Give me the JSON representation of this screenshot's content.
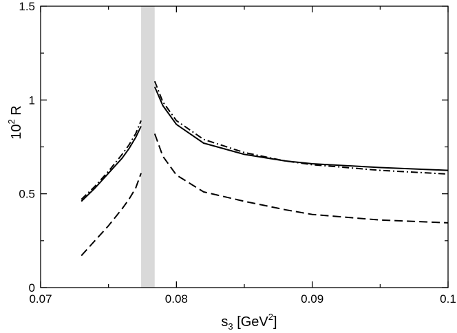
{
  "chart_data": {
    "type": "line",
    "xlim": [
      0.07,
      0.1
    ],
    "ylim": [
      0,
      1.5
    ],
    "x_ticks": [
      "0.07",
      "0.08",
      "0.09",
      "0.1"
    ],
    "y_ticks": [
      "0",
      "0.5",
      "1",
      "1.5"
    ],
    "xlabel": {
      "main": "s",
      "sub": "3",
      "mid": " [GeV",
      "sup": "2",
      "end": "]"
    },
    "ylabel": {
      "base": "10",
      "sup": "2",
      "rest": " R"
    },
    "shaded_band": {
      "x_from": 0.0774,
      "x_to": 0.0784,
      "color": "#d9d9d9"
    },
    "grid": false,
    "series": [
      {
        "style": "solid",
        "x": [
          0.073,
          0.074,
          0.075,
          0.076,
          0.0765,
          0.077,
          0.0774
        ],
        "y": [
          0.46,
          0.53,
          0.61,
          0.69,
          0.74,
          0.8,
          0.86
        ],
        "x2": [
          0.0784,
          0.079,
          0.08,
          0.082,
          0.085,
          0.088,
          0.09,
          0.095,
          0.1
        ],
        "y2": [
          1.07,
          0.97,
          0.87,
          0.77,
          0.71,
          0.675,
          0.66,
          0.64,
          0.625
        ]
      },
      {
        "style": "dashdot",
        "x": [
          0.073,
          0.074,
          0.075,
          0.076,
          0.0765,
          0.077,
          0.0774
        ],
        "y": [
          0.47,
          0.54,
          0.62,
          0.71,
          0.76,
          0.82,
          0.89
        ],
        "x2": [
          0.0784,
          0.079,
          0.08,
          0.082,
          0.085,
          0.088,
          0.09,
          0.095,
          0.1
        ],
        "y2": [
          1.1,
          0.99,
          0.89,
          0.79,
          0.72,
          0.675,
          0.655,
          0.625,
          0.605
        ]
      },
      {
        "style": "dashed",
        "x": [
          0.073,
          0.074,
          0.075,
          0.076,
          0.0765,
          0.077,
          0.0774
        ],
        "y": [
          0.17,
          0.25,
          0.33,
          0.42,
          0.47,
          0.53,
          0.61
        ],
        "x2": [
          0.0784,
          0.079,
          0.08,
          0.082,
          0.085,
          0.088,
          0.09,
          0.095,
          0.1
        ],
        "y2": [
          0.82,
          0.7,
          0.6,
          0.51,
          0.46,
          0.415,
          0.39,
          0.36,
          0.345
        ]
      }
    ]
  }
}
